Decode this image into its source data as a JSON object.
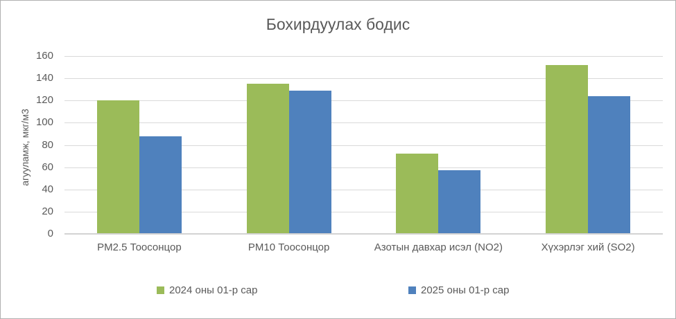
{
  "frame": {
    "background": "#ffffff",
    "border_color": "#b0b0b0"
  },
  "chart_data": {
    "type": "bar",
    "title": "Бохирдуулах бодис",
    "xlabel": "",
    "ylabel": "агууламж, мкг/м3",
    "categories": [
      "PM2.5 Тоосонцор",
      "PM10 Тоосонцор",
      "Азотын давхар исэл (NO2)",
      "Хүхэрлэг хий (SO2)"
    ],
    "series": [
      {
        "name": "2024 оны 01-р сар",
        "color": "#9bbb59",
        "values": [
          120,
          135,
          72,
          152
        ]
      },
      {
        "name": "2025 оны 01-р сар",
        "color": "#4f81bd",
        "values": [
          88,
          129,
          57,
          124
        ]
      }
    ],
    "ylim": [
      0,
      160
    ],
    "ytick_step": 20,
    "yticks": [
      0,
      20,
      40,
      60,
      80,
      100,
      120,
      140,
      160
    ],
    "grid": "horizontal",
    "legend_position": "bottom",
    "colors": {
      "gridline": "#d9d9d9",
      "axis_line": "#d2d2d2",
      "text": "#595959"
    }
  }
}
